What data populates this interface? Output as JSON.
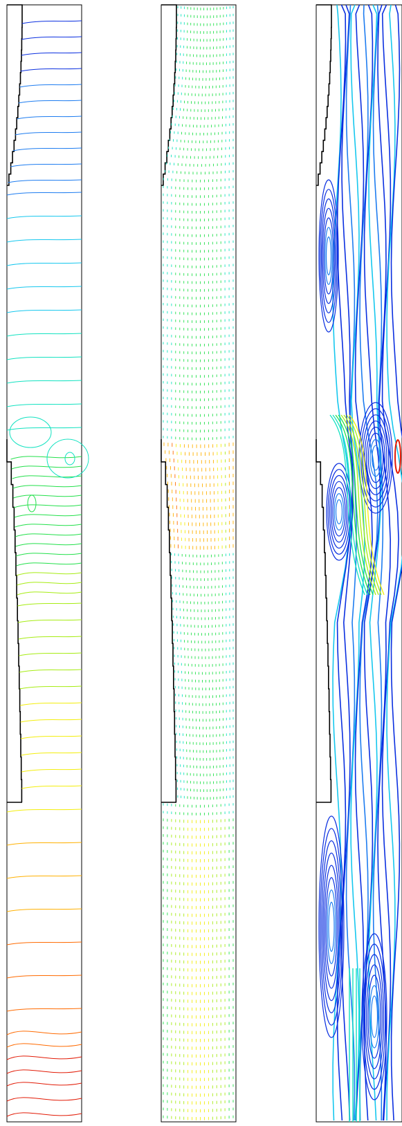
{
  "figure": {
    "panels": [
      {
        "id": "isolines",
        "kind": "contour"
      },
      {
        "id": "velocity",
        "kind": "vector-field"
      },
      {
        "id": "streamlines",
        "kind": "streamline"
      }
    ],
    "colormap": [
      "#0a2fe0",
      "#1d7cf0",
      "#15c7ee",
      "#11e2c0",
      "#22e04a",
      "#a6ec12",
      "#f3ee0c",
      "#ffb000",
      "#ff6a00",
      "#e21a05"
    ],
    "wall_color": "#000000",
    "frame_color": "#000000"
  }
}
